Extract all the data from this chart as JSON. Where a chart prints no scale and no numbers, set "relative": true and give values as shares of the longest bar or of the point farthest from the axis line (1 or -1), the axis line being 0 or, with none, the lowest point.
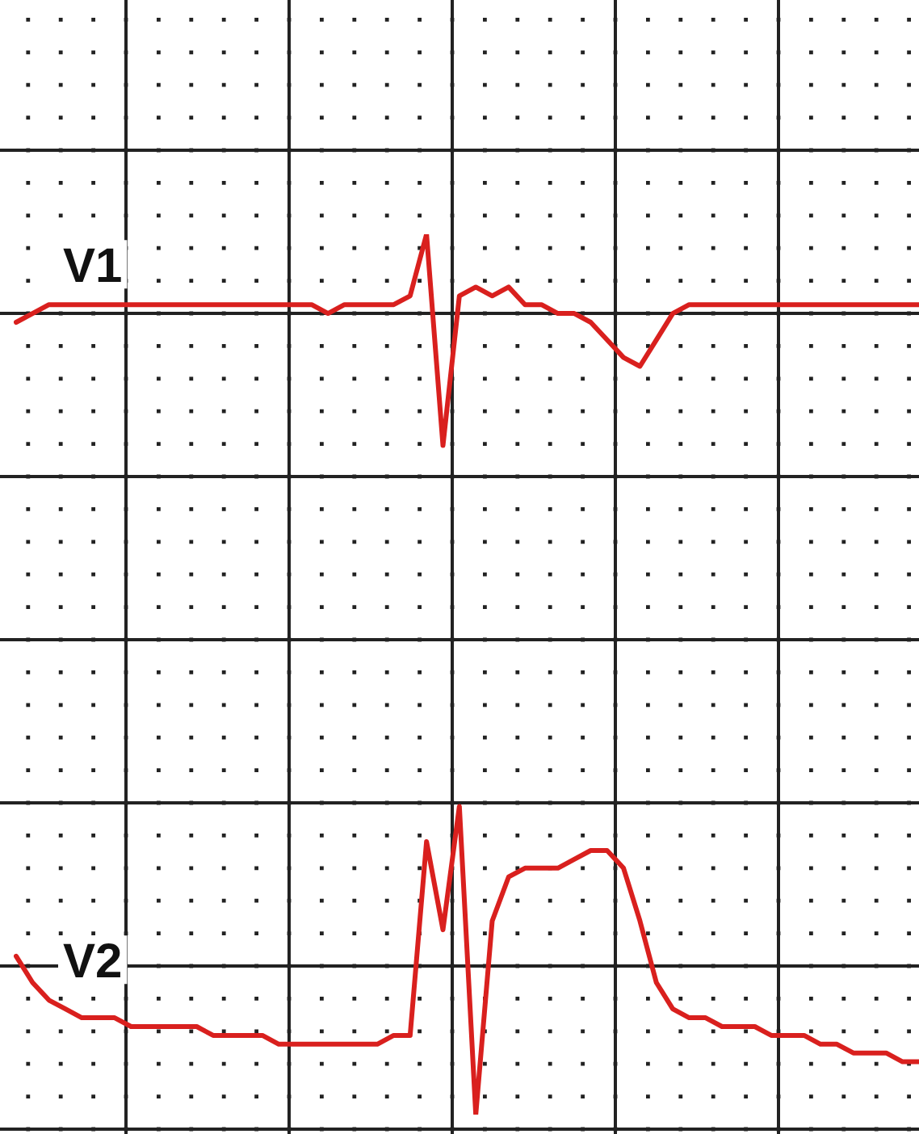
{
  "chart_data": {
    "type": "line",
    "relative": true,
    "grid": true,
    "legend": false,
    "marker": "none",
    "line_style": "solid",
    "categories": [
      null,
      null,
      null,
      null,
      null,
      null,
      null,
      null,
      null,
      null,
      null,
      null,
      null,
      null,
      null,
      null,
      null,
      null,
      null,
      null,
      null,
      null,
      null,
      null,
      null,
      null,
      null,
      null,
      null,
      null,
      null,
      null,
      null,
      null,
      null,
      null,
      null,
      null,
      null,
      null,
      null,
      null,
      null,
      null,
      null,
      null,
      null,
      null,
      null,
      null,
      null,
      null,
      null,
      null,
      null,
      null
    ],
    "series": [
      {
        "name": "V1",
        "color": "#d9201e",
        "values": [
          0.9,
          0.91,
          0.92,
          0.92,
          0.92,
          0.92,
          0.92,
          0.92,
          0.92,
          0.92,
          0.92,
          0.92,
          0.92,
          0.92,
          0.92,
          0.92,
          0.92,
          0.92,
          0.92,
          0.91,
          0.92,
          0.92,
          0.92,
          0.92,
          0.93,
          1,
          0.76,
          0.93,
          0.94,
          0.93,
          0.94,
          0.92,
          0.92,
          0.91,
          0.91,
          0.9,
          0.88,
          0.86,
          0.85,
          0.88,
          0.91,
          0.92,
          0.92,
          0.92,
          0.92,
          0.92,
          0.92,
          0.92,
          0.92,
          0.92,
          0.92,
          0.92,
          0.92,
          0.92,
          0.92,
          0.92
        ]
      },
      {
        "name": "V2",
        "color": "#d9201e",
        "values": [
          0.18,
          0.15,
          0.13,
          0.12,
          0.11,
          0.11,
          0.11,
          0.1,
          0.1,
          0.1,
          0.1,
          0.1,
          0.09,
          0.09,
          0.09,
          0.09,
          0.08,
          0.08,
          0.08,
          0.08,
          0.08,
          0.08,
          0.08,
          0.09,
          0.09,
          0.31,
          0.21,
          0.35,
          0,
          0.22,
          0.27,
          0.28,
          0.28,
          0.28,
          0.29,
          0.3,
          0.3,
          0.28,
          0.22,
          0.15,
          0.12,
          0.11,
          0.11,
          0.1,
          0.1,
          0.1,
          0.09,
          0.09,
          0.09,
          0.08,
          0.08,
          0.07,
          0.07,
          0.07,
          0.06,
          0.06
        ]
      }
    ]
  }
}
